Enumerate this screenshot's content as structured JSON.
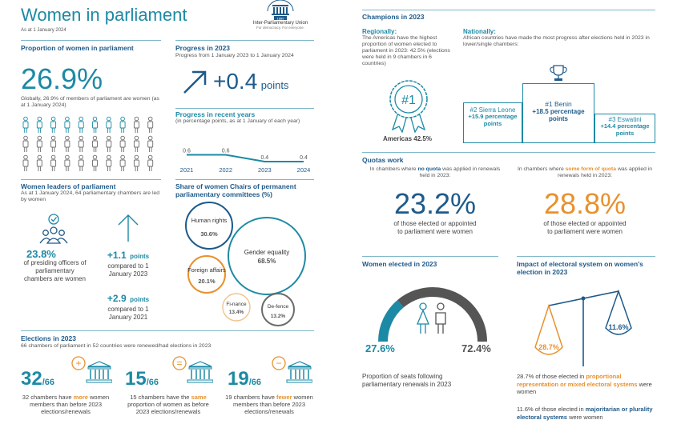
{
  "header": {
    "title": "Women in parliament",
    "date": "As at 1 January 2024",
    "logo_name": "Inter-Parliamentary Union",
    "logo_tagline": "For democracy. For everyone.",
    "logo_year": "1889"
  },
  "proportion": {
    "title": "Proportion of women in parliament",
    "value": "26.9%",
    "desc": "Globally, 26.9% of members of parliament are women (as at 1 January 2024)",
    "women_share": 0.269
  },
  "progress2023": {
    "title": "Progress in 2023",
    "subtitle": "Progress from 1 January 2023 to 1 January 2024",
    "value": "+0.4",
    "unit": "points"
  },
  "recent": {
    "title": "Progress in recent years",
    "subtitle": "(in percentage points, as at 1 January of each year)"
  },
  "chart_data": {
    "type": "line",
    "title": "Progress in recent years",
    "categories": [
      "2021",
      "2022",
      "2023",
      "2024"
    ],
    "values": [
      0.6,
      0.6,
      0.4,
      0.4
    ],
    "value_labels": [
      "0.6",
      "0.6",
      "0.4",
      "0.4"
    ],
    "ylim": [
      0,
      0.8
    ]
  },
  "leaders": {
    "title": "Women leaders of parliament",
    "subtitle": "As at 1 January 2024, 64 parliamentary chambers are led by women",
    "value": "23.8%",
    "desc": "of presiding officers of parliamentary chambers are women",
    "change1_value": "+1.1",
    "change1_unit": "points",
    "change1_desc": "compared to 1 January 2023",
    "change2_value": "+2.9",
    "change2_unit": "points",
    "change2_desc": "compared to 1 January 2021"
  },
  "committees": {
    "title": "Share of women Chairs of permanent parliamentary committees (%)",
    "items": [
      {
        "name": "Human rights",
        "value": "30.6%"
      },
      {
        "name": "Gender equality",
        "value": "68.5%"
      },
      {
        "name": "Foreign affairs",
        "value": "20.1%"
      },
      {
        "name": "Fi-nance",
        "value": "13.4%"
      },
      {
        "name": "De-fence",
        "value": "13.2%"
      }
    ]
  },
  "elections": {
    "title": "Elections in 2023",
    "subtitle": "66 chambers of parliament in 52 countries were renewed/had elections in 2023",
    "items": [
      {
        "num": "32",
        "den": "/66",
        "sign": "+",
        "pre": "32 chambers have",
        "key": "more",
        "post": "women members than before 2023 elections/renewals"
      },
      {
        "num": "15",
        "den": "/66",
        "sign": "=",
        "pre": "15 chambers have the",
        "key": "same",
        "post": "proportion of women as before 2023 elections/renewals"
      },
      {
        "num": "19",
        "den": "/66",
        "sign": "−",
        "pre": "19 chambers have",
        "key": "fewer",
        "post": "women members than before 2023 elections/renewals"
      }
    ]
  },
  "champions": {
    "title": "Champions in 2023",
    "regional_title": "Regionally:",
    "regional_text": "The Americas have the highest proportion of women elected to parliament in 2023: 42.5% (elections were held in 9 chambers in 6 countries)",
    "badge": "#1",
    "americas": "Americas 42.5%",
    "national_title": "Nationally:",
    "national_text": "African countries have made the most progress after elections held in 2023 in lower/single chambers:",
    "podium": [
      {
        "rank": "#2 Sierra Leone",
        "value": "+15.9 percentage points"
      },
      {
        "rank": "#1 Benin",
        "value": "+18.5 percentage points"
      },
      {
        "rank": "#3 Eswatini",
        "value": "+14.4 percentage points"
      }
    ]
  },
  "quotas": {
    "title": "Quotas work",
    "left_pre": "In chambers where",
    "left_key": "no quota",
    "left_post": "was applied in renewals held in 2023:",
    "left_value": "23.2%",
    "left_desc": "of those elected or appointed to parliament were women",
    "right_pre": "In chambers where",
    "right_key": "some form of quota",
    "right_post": "was applied in renewals held in 2023:",
    "right_value": "28.8%",
    "right_desc": "of those elected or appointed to parliament were women"
  },
  "elected": {
    "title": "Women elected in 2023",
    "women": "27.6%",
    "men": "72.4%",
    "women_share": 0.276,
    "desc": "Proportion of seats following parliamentary renewals in 2023"
  },
  "impact": {
    "title": "Impact of electoral system on women's election in 2023",
    "left_value": "28.7%",
    "right_value": "11.6%",
    "note1_pre": "28.7% of those elected in",
    "note1_key": "proportional representation or mixed electoral systems",
    "note1_post": "were women",
    "note2_pre": "11.6% of those elected in",
    "note2_key": "majoritarian or plurality electoral systems",
    "note2_post": "were women"
  },
  "colors": {
    "teal": "#1d8aa5",
    "navy": "#1e5a8a",
    "orange": "#e8912d",
    "grey": "#6b6b6b"
  }
}
